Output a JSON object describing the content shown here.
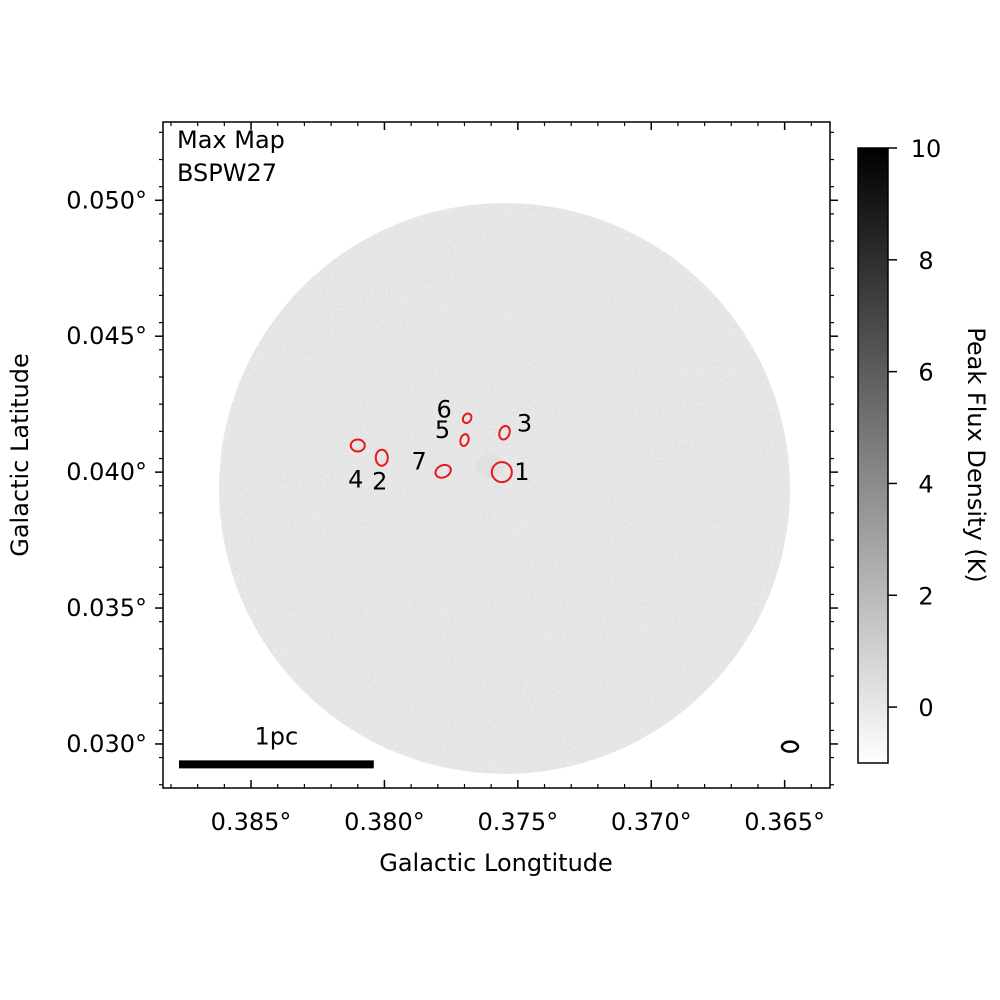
{
  "chart_data": {
    "type": "heatmap",
    "annotation": {
      "line1": "Max Map",
      "line2": "BSPW27"
    },
    "xlabel": "Galactic Longtitude",
    "ylabel": "Galactic Latitude",
    "xlim": [
      0.3883,
      0.3633
    ],
    "ylim": [
      0.02838,
      0.05288
    ],
    "x_ticks": [
      0.385,
      0.38,
      0.375,
      0.37,
      0.365
    ],
    "x_tick_labels": [
      "0.385°",
      "0.380°",
      "0.375°",
      "0.370°",
      "0.365°"
    ],
    "y_ticks": [
      0.03,
      0.035,
      0.04,
      0.045,
      0.05
    ],
    "y_tick_labels": [
      "0.030°",
      "0.035°",
      "0.040°",
      "0.045°",
      "0.050°"
    ],
    "field_center": [
      0.3755,
      0.0394
    ],
    "field_radius_deg": 0.0107,
    "colorbar": {
      "label": "Peak Flux Density (K)",
      "min": -1.0,
      "max": 10.0,
      "ticks": [
        0,
        2,
        4,
        6,
        8,
        10
      ],
      "tick_labels": [
        "0",
        "2",
        "4",
        "6",
        "8",
        "10"
      ],
      "colormap": "gray_r"
    },
    "scale_bar": {
      "label": "1pc",
      "x_start": 0.3877,
      "x_end": 0.3804,
      "y": 0.02925
    },
    "beam": {
      "x": 0.3648,
      "y": 0.0299
    },
    "sources": [
      {
        "label": "1",
        "x": 0.3756,
        "y": 0.04,
        "color": "#e8191c"
      },
      {
        "label": "2",
        "x": 0.3801,
        "y": 0.04053,
        "color": "#e8191c"
      },
      {
        "label": "3",
        "x": 0.3755,
        "y": 0.04145,
        "color": "#e8191c"
      },
      {
        "label": "4",
        "x": 0.381,
        "y": 0.04098,
        "color": "#e8191c"
      },
      {
        "label": "5",
        "x": 0.377,
        "y": 0.04118,
        "color": "#e8191c"
      },
      {
        "label": "6",
        "x": 0.3769,
        "y": 0.04198,
        "color": "#e8191c"
      },
      {
        "label": "7",
        "x": 0.3778,
        "y": 0.04003,
        "color": "#e8191c"
      }
    ]
  }
}
